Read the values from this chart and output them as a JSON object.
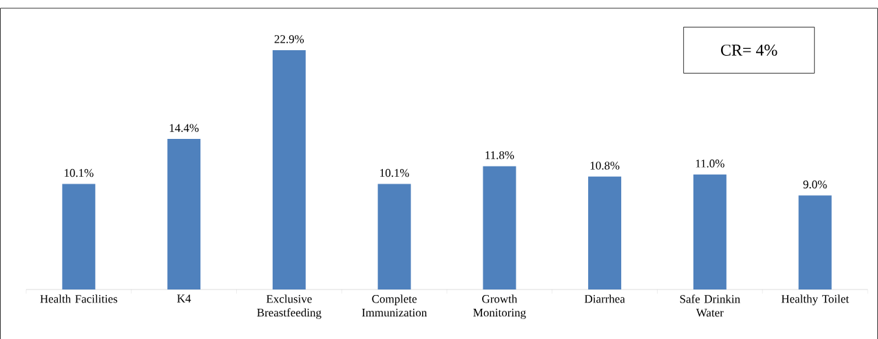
{
  "chart_data": {
    "type": "bar",
    "categories": [
      "Health Facilities",
      "K4",
      "Exclusive Breastfeeding",
      "Complete Immunization",
      "Growth Monitoring",
      "Diarrhea",
      "Safe Drinkin Water",
      "Healthy Toilet"
    ],
    "values": [
      10.1,
      14.4,
      22.9,
      10.1,
      11.8,
      10.8,
      11.0,
      9.0
    ],
    "value_labels": [
      "10.1%",
      "14.4%",
      "22.9%",
      "10.1%",
      "11.8%",
      "10.8%",
      "11.0%",
      "9.0%"
    ],
    "color": "#4f81bd",
    "annotations": [
      "CR= 4%"
    ]
  }
}
